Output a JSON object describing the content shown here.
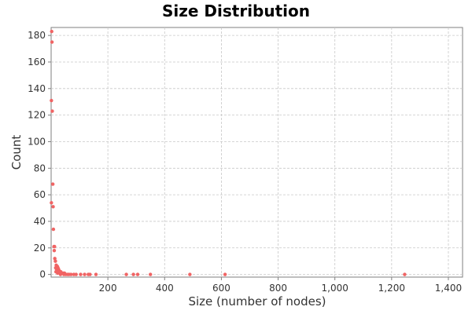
{
  "chart_data": {
    "type": "scatter",
    "title": "Size Distribution",
    "xlabel": "Size (number of nodes)",
    "ylabel": "Count",
    "xlim": [
      0,
      1450
    ],
    "ylim": [
      -2,
      186
    ],
    "x_ticks": [
      200,
      400,
      600,
      800,
      1000,
      1200,
      1400
    ],
    "x_tick_labels": [
      "200",
      "400",
      "600",
      "800",
      "1,000",
      "1,200",
      "1,400"
    ],
    "y_ticks": [
      0,
      20,
      40,
      60,
      80,
      100,
      120,
      140,
      160,
      180
    ],
    "y_tick_labels": [
      "0",
      "20",
      "40",
      "60",
      "80",
      "100",
      "120",
      "140",
      "160",
      "180"
    ],
    "grid": true,
    "legend": "none",
    "point_color": "#f06464",
    "points": [
      {
        "x": 2,
        "y": 183
      },
      {
        "x": 3,
        "y": 175
      },
      {
        "x": 1,
        "y": 131
      },
      {
        "x": 4,
        "y": 123
      },
      {
        "x": 6,
        "y": 68
      },
      {
        "x": 1,
        "y": 54
      },
      {
        "x": 7,
        "y": 51
      },
      {
        "x": 8,
        "y": 34
      },
      {
        "x": 10,
        "y": 21
      },
      {
        "x": 12,
        "y": 21
      },
      {
        "x": 11,
        "y": 18
      },
      {
        "x": 13,
        "y": 12
      },
      {
        "x": 15,
        "y": 10
      },
      {
        "x": 18,
        "y": 7
      },
      {
        "x": 20,
        "y": 6
      },
      {
        "x": 22,
        "y": 6
      },
      {
        "x": 16,
        "y": 5
      },
      {
        "x": 24,
        "y": 5
      },
      {
        "x": 19,
        "y": 4
      },
      {
        "x": 26,
        "y": 4
      },
      {
        "x": 21,
        "y": 3
      },
      {
        "x": 28,
        "y": 3
      },
      {
        "x": 17,
        "y": 2
      },
      {
        "x": 25,
        "y": 2
      },
      {
        "x": 30,
        "y": 2
      },
      {
        "x": 34,
        "y": 2
      },
      {
        "x": 38,
        "y": 1
      },
      {
        "x": 42,
        "y": 1
      },
      {
        "x": 23,
        "y": 1
      },
      {
        "x": 47,
        "y": 1
      },
      {
        "x": 33,
        "y": 0
      },
      {
        "x": 45,
        "y": 0
      },
      {
        "x": 52,
        "y": 0
      },
      {
        "x": 58,
        "y": 0
      },
      {
        "x": 63,
        "y": 0
      },
      {
        "x": 70,
        "y": 0
      },
      {
        "x": 80,
        "y": 0
      },
      {
        "x": 88,
        "y": 0
      },
      {
        "x": 104,
        "y": 0
      },
      {
        "x": 118,
        "y": 0
      },
      {
        "x": 131,
        "y": 0
      },
      {
        "x": 137,
        "y": 0
      },
      {
        "x": 158,
        "y": 0
      },
      {
        "x": 265,
        "y": 0
      },
      {
        "x": 290,
        "y": 0
      },
      {
        "x": 305,
        "y": 0
      },
      {
        "x": 350,
        "y": 0
      },
      {
        "x": 489,
        "y": 0
      },
      {
        "x": 613,
        "y": 0
      },
      {
        "x": 1246,
        "y": 0
      }
    ]
  }
}
